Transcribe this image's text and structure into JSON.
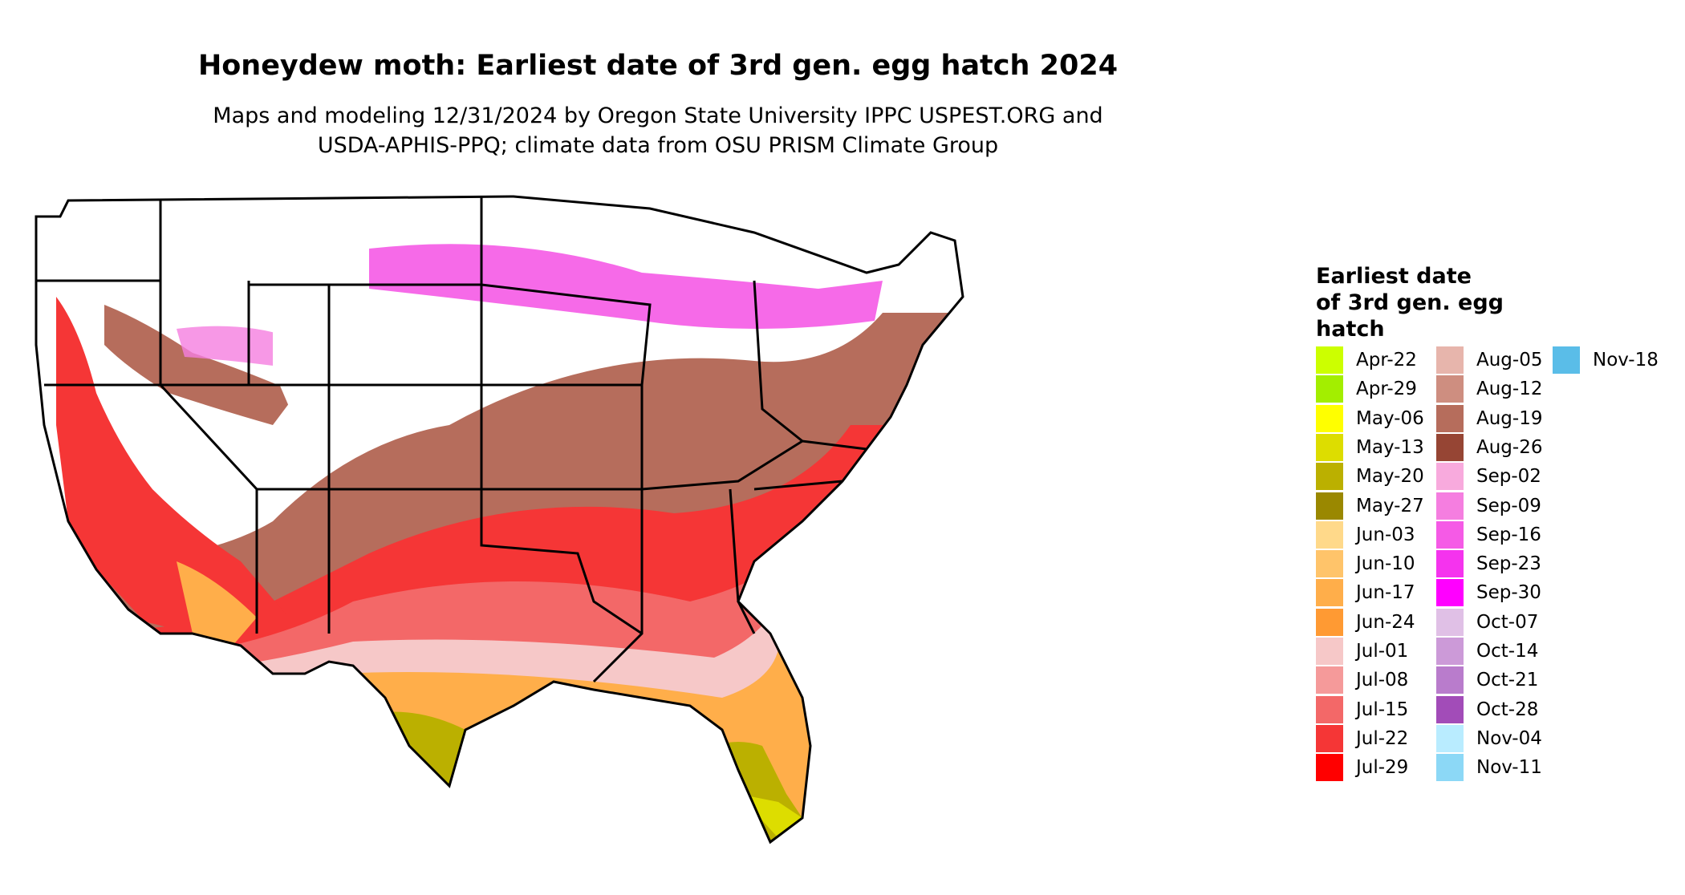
{
  "title": "Honeydew moth: Earliest date of 3rd gen. egg hatch 2024",
  "subtitle_line1": "Maps and modeling 12/31/2024 by Oregon State University IPPC USPEST.ORG and",
  "subtitle_line2": "USDA-APHIS-PPQ; climate data from OSU PRISM Climate Group",
  "legend": {
    "title_lines": [
      "Earliest date",
      "of 3rd gen. egg",
      "hatch"
    ],
    "items": [
      {
        "label": "Apr-22",
        "color": "#ccff00"
      },
      {
        "label": "Apr-29",
        "color": "#a3ee00"
      },
      {
        "label": "May-06",
        "color": "#ffff00"
      },
      {
        "label": "May-13",
        "color": "#dddd00"
      },
      {
        "label": "May-20",
        "color": "#bbb000"
      },
      {
        "label": "May-27",
        "color": "#9a8800"
      },
      {
        "label": "Jun-03",
        "color": "#ffd98a"
      },
      {
        "label": "Jun-10",
        "color": "#ffc46a"
      },
      {
        "label": "Jun-17",
        "color": "#ffae4a"
      },
      {
        "label": "Jun-24",
        "color": "#ff9a33"
      },
      {
        "label": "Jul-01",
        "color": "#f6c8c8"
      },
      {
        "label": "Jul-08",
        "color": "#f59a9a"
      },
      {
        "label": "Jul-15",
        "color": "#f36868"
      },
      {
        "label": "Jul-22",
        "color": "#f53636"
      },
      {
        "label": "Jul-29",
        "color": "#ff0000"
      },
      {
        "label": "Aug-05",
        "color": "#e7b5ac"
      },
      {
        "label": "Aug-12",
        "color": "#ce8e80"
      },
      {
        "label": "Aug-19",
        "color": "#b66d5c"
      },
      {
        "label": "Aug-26",
        "color": "#964534"
      },
      {
        "label": "Sep-02",
        "color": "#f8aadd"
      },
      {
        "label": "Sep-09",
        "color": "#f57ee0"
      },
      {
        "label": "Sep-16",
        "color": "#f55ae6"
      },
      {
        "label": "Sep-23",
        "color": "#f533ee"
      },
      {
        "label": "Sep-30",
        "color": "#ff00ff"
      },
      {
        "label": "Oct-07",
        "color": "#e0c0e6"
      },
      {
        "label": "Oct-14",
        "color": "#cc9ad8"
      },
      {
        "label": "Oct-21",
        "color": "#b97ccc"
      },
      {
        "label": "Oct-28",
        "color": "#a24cb8"
      },
      {
        "label": "Nov-04",
        "color": "#b9ecff"
      },
      {
        "label": "Nov-11",
        "color": "#8cd8f6"
      },
      {
        "label": "Nov-18",
        "color": "#5abde8"
      }
    ]
  },
  "map_colors": {
    "state_outline": "#000000",
    "no_data": "#ffffff"
  }
}
